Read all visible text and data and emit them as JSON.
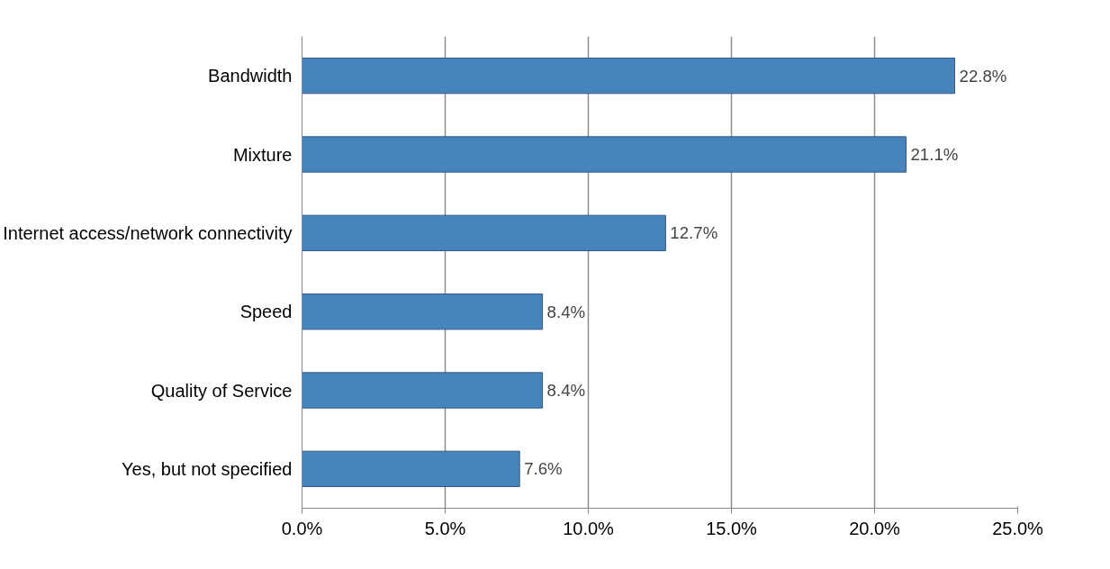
{
  "chart_data": {
    "type": "bar",
    "orientation": "horizontal",
    "categories": [
      "Bandwidth",
      "Mixture",
      "Internet access/network connectivity",
      "Speed",
      "Quality of Service",
      "Yes, but not specified"
    ],
    "values": [
      22.8,
      21.1,
      12.7,
      8.4,
      8.4,
      7.6
    ],
    "value_labels": [
      "22.8%",
      "21.1%",
      "12.7%",
      "8.4%",
      "8.4%",
      "7.6%"
    ],
    "color": "#4684be",
    "xlim": [
      0,
      25
    ],
    "xticks": [
      {
        "value": 0,
        "label": "0.0%"
      },
      {
        "value": 5,
        "label": "5.0%"
      },
      {
        "value": 10,
        "label": "10.0%"
      },
      {
        "value": 15,
        "label": "15.0%"
      },
      {
        "value": 20,
        "label": "20.0%"
      },
      {
        "value": 25,
        "label": "25.0%"
      }
    ],
    "grid": "x"
  }
}
